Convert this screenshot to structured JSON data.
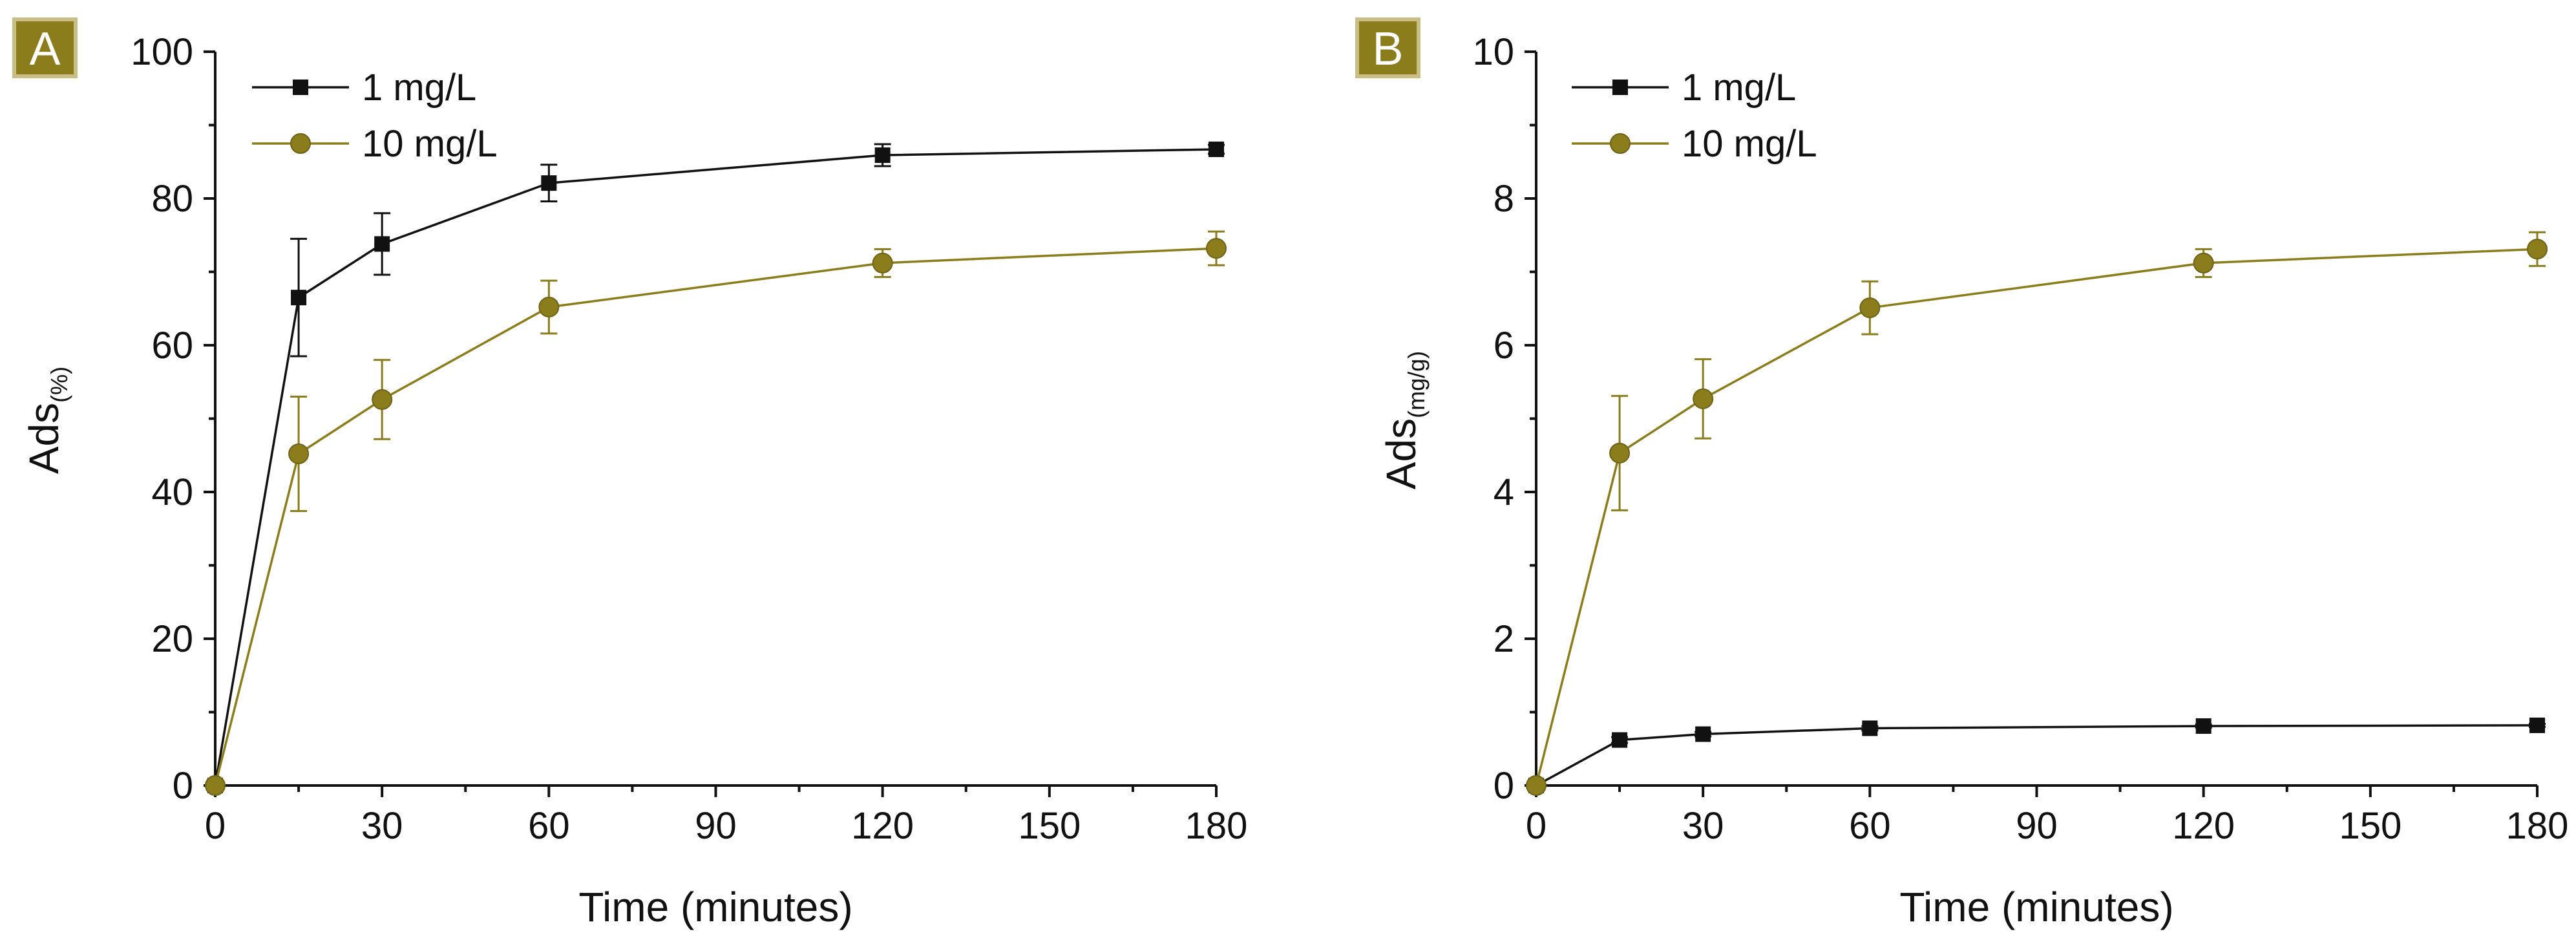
{
  "figure": {
    "panels": [
      {
        "letter": "A",
        "letter_bg": "#8b7d1c",
        "letter_border": "#c9bf86"
      },
      {
        "letter": "B",
        "letter_bg": "#8b7d1c",
        "letter_border": "#c9bf86"
      }
    ]
  },
  "chart_data": [
    {
      "type": "line",
      "panel": "A",
      "title": "",
      "xlabel": "Time (minutes)",
      "ylabel": "Ads",
      "ylabel_subscript": "(%)",
      "xlim": [
        0,
        180
      ],
      "ylim": [
        0,
        100
      ],
      "xticks": [
        0,
        30,
        60,
        90,
        120,
        150,
        180
      ],
      "yticks": [
        0,
        20,
        40,
        60,
        80,
        100
      ],
      "x": [
        0,
        15,
        30,
        60,
        120,
        180
      ],
      "legend_position": "top-left",
      "grid": false,
      "series": [
        {
          "name": "1 mg/L",
          "color": "#111111",
          "marker": "square",
          "values": [
            0,
            66.5,
            73.8,
            82.1,
            85.9,
            86.7
          ],
          "errors": [
            0,
            8,
            4.2,
            2.5,
            1.5,
            0.6
          ]
        },
        {
          "name": "10 mg/L",
          "color": "#8b7d1c",
          "marker": "circle",
          "values": [
            0,
            45.2,
            52.6,
            65.2,
            71.2,
            73.2
          ],
          "errors": [
            0,
            7.8,
            5.4,
            3.6,
            1.9,
            2.3
          ]
        }
      ]
    },
    {
      "type": "line",
      "panel": "B",
      "title": "",
      "xlabel": "Time (minutes)",
      "ylabel": "Ads",
      "ylabel_subscript": "(mg/g)",
      "xlim": [
        0,
        180
      ],
      "ylim": [
        0,
        10
      ],
      "xticks": [
        0,
        30,
        60,
        90,
        120,
        150,
        180
      ],
      "yticks": [
        0,
        2,
        4,
        6,
        8,
        10
      ],
      "x": [
        0,
        15,
        30,
        60,
        120,
        180
      ],
      "legend_position": "top-left",
      "grid": false,
      "series": [
        {
          "name": "1 mg/L",
          "color": "#111111",
          "marker": "square",
          "values": [
            0,
            0.62,
            0.7,
            0.78,
            0.81,
            0.82
          ],
          "errors": [
            0,
            0.04,
            0.03,
            0.03,
            0.02,
            0.02
          ]
        },
        {
          "name": "10 mg/L",
          "color": "#8b7d1c",
          "marker": "circle",
          "values": [
            0,
            4.53,
            5.27,
            6.51,
            7.12,
            7.31
          ],
          "errors": [
            0,
            0.78,
            0.54,
            0.36,
            0.19,
            0.23
          ]
        }
      ]
    }
  ]
}
